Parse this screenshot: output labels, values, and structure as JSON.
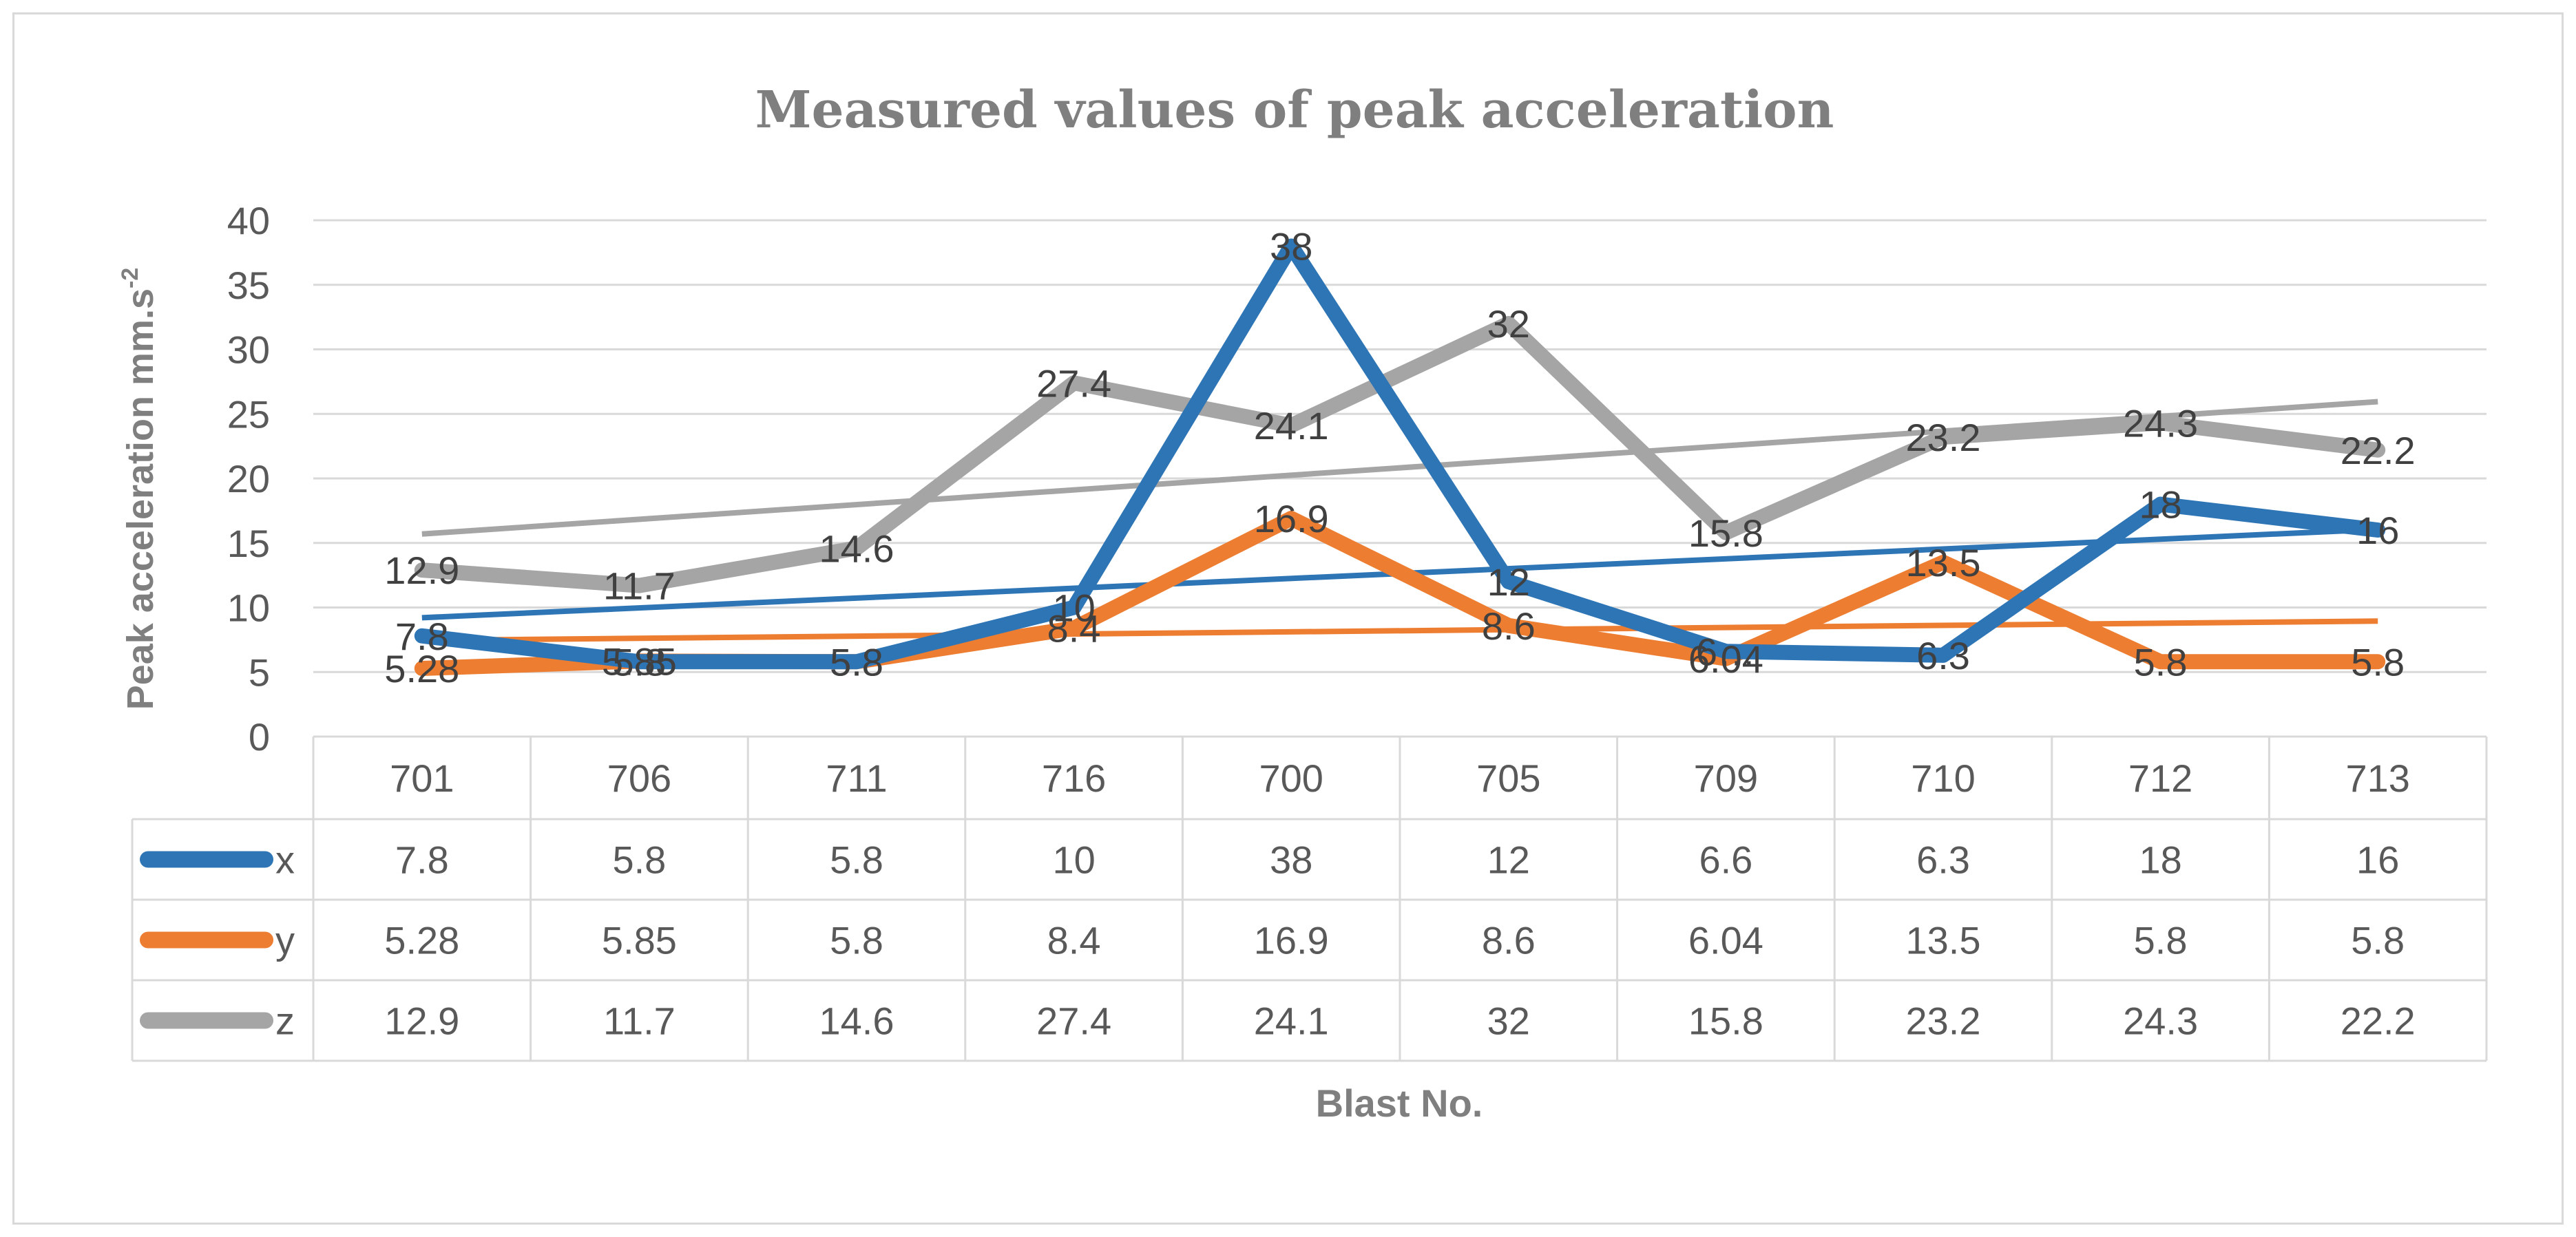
{
  "chart_data": {
    "type": "line",
    "title": "Measured values of peak acceleration",
    "xlabel": "Blast No.",
    "ylabel": "Peak acceleration mm.s",
    "ylabel_superscript": "-2",
    "categories": [
      "701",
      "706",
      "711",
      "716",
      "700",
      "705",
      "709",
      "710",
      "712",
      "713"
    ],
    "ylim": [
      0,
      40
    ],
    "yticks": [
      0,
      5,
      10,
      15,
      20,
      25,
      30,
      35,
      40
    ],
    "grid": true,
    "legend": "data-table",
    "series": [
      {
        "name": "x",
        "color": "#2e75b6",
        "values": [
          7.8,
          5.8,
          5.8,
          10,
          38,
          12,
          6.6,
          6.3,
          18,
          16
        ],
        "labels": [
          "7.8",
          "5.8",
          "5.8",
          "10",
          "38",
          "12",
          "6…",
          "6.3",
          "18",
          "16"
        ],
        "table_values": [
          "7.8",
          "5.8",
          "5.8",
          "10",
          "38",
          "12",
          "6.6",
          "6.3",
          "18",
          "16"
        ],
        "trendline": true
      },
      {
        "name": "y",
        "color": "#ed7d31",
        "values": [
          5.28,
          5.85,
          5.8,
          8.4,
          16.9,
          8.6,
          6.04,
          13.5,
          5.8,
          5.8
        ],
        "labels": [
          "5.28",
          "5.85",
          "5.8",
          "8.4",
          "16.9",
          "8.6",
          "6.04",
          "13.5",
          "5.8",
          "5.8"
        ],
        "table_values": [
          "5.28",
          "5.85",
          "5.8",
          "8.4",
          "16.9",
          "8.6",
          "6.04",
          "13.5",
          "5.8",
          "5.8"
        ],
        "trendline": true
      },
      {
        "name": "z",
        "color": "#a5a5a5",
        "values": [
          12.9,
          11.7,
          14.6,
          27.4,
          24.1,
          32,
          15.8,
          23.2,
          24.3,
          22.2
        ],
        "labels": [
          "12.9",
          "11.7",
          "14.6",
          "27.4",
          "24.1",
          "32",
          "15.8",
          "23.2",
          "24.3",
          "22.2"
        ],
        "table_values": [
          "12.9",
          "11.7",
          "14.6",
          "27.4",
          "24.1",
          "32",
          "15.8",
          "23.2",
          "24.3",
          "22.2"
        ],
        "trendline": true
      }
    ]
  }
}
